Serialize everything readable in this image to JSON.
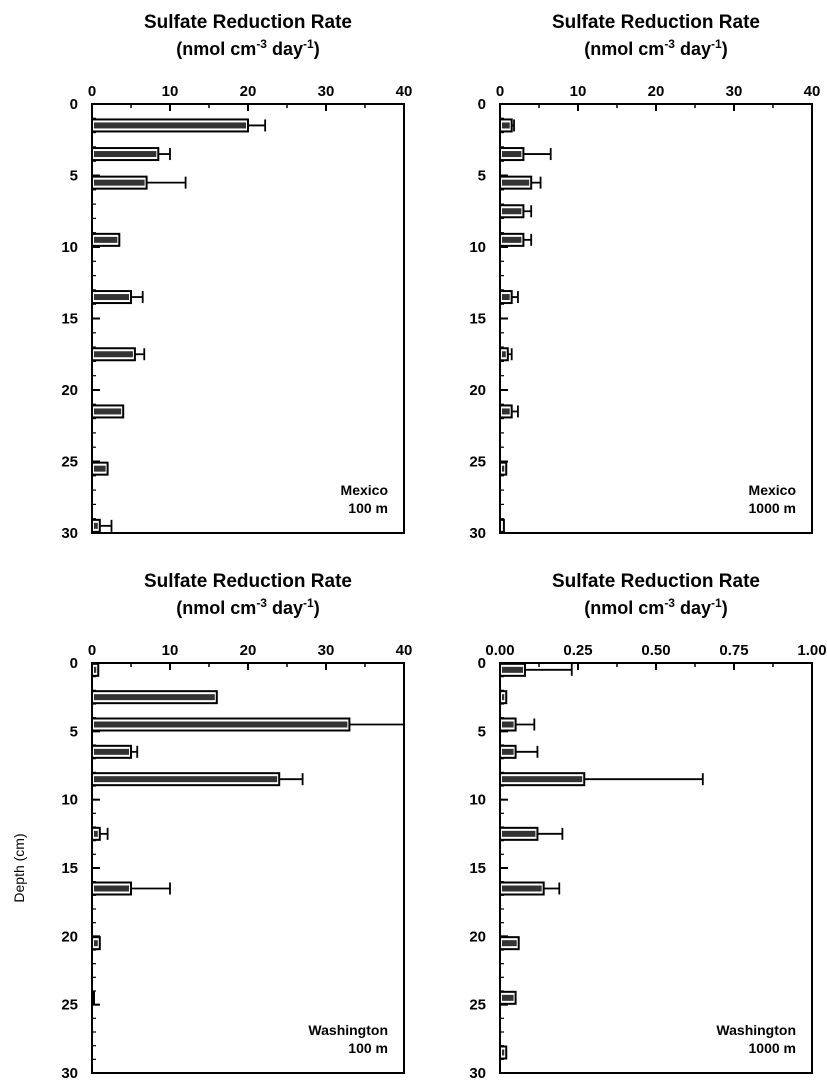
{
  "chart_data": [
    {
      "type": "bar",
      "orientation": "horizontal",
      "title": "Sulfate Reduction Rate",
      "unit": {
        "pre": "(nmol cm",
        "sup1": "-3",
        "mid": " day",
        "sup2": "-1",
        "post": ")"
      },
      "ylabel": "",
      "panel_label": [
        "Mexico",
        "100 m"
      ],
      "xlim": [
        0,
        40
      ],
      "ylim": [
        0,
        30
      ],
      "xticks": [
        "0",
        "10",
        "20",
        "30",
        "40"
      ],
      "yticks": [
        "0",
        "5",
        "10",
        "15",
        "20",
        "25",
        "30"
      ],
      "data": [
        {
          "depth": 1.5,
          "value": 20,
          "error": 2.2
        },
        {
          "depth": 3.5,
          "value": 8.5,
          "error": 1.5
        },
        {
          "depth": 5.5,
          "value": 7,
          "error": 5
        },
        {
          "depth": 9.5,
          "value": 3.5,
          "error": 0
        },
        {
          "depth": 13.5,
          "value": 5,
          "error": 1.5
        },
        {
          "depth": 17.5,
          "value": 5.5,
          "error": 1.2
        },
        {
          "depth": 21.5,
          "value": 4,
          "error": 0
        },
        {
          "depth": 25.5,
          "value": 2,
          "error": 0
        },
        {
          "depth": 29.5,
          "value": 1,
          "error": 1.5
        }
      ]
    },
    {
      "type": "bar",
      "orientation": "horizontal",
      "title": "Sulfate Reduction Rate",
      "unit": {
        "pre": "(nmol cm",
        "sup1": "-3",
        "mid": " day",
        "sup2": "-1",
        "post": ")"
      },
      "ylabel": "",
      "panel_label": [
        "Mexico",
        "1000 m"
      ],
      "xlim": [
        0,
        40
      ],
      "ylim": [
        0,
        30
      ],
      "xticks": [
        "0",
        "10",
        "20",
        "30",
        "40"
      ],
      "yticks": [
        "0",
        "5",
        "10",
        "15",
        "20",
        "25",
        "30"
      ],
      "data": [
        {
          "depth": 1.5,
          "value": 1.5,
          "error": 0.3
        },
        {
          "depth": 3.5,
          "value": 3,
          "error": 3.5
        },
        {
          "depth": 5.5,
          "value": 4,
          "error": 1.2
        },
        {
          "depth": 7.5,
          "value": 3,
          "error": 1
        },
        {
          "depth": 9.5,
          "value": 3,
          "error": 1
        },
        {
          "depth": 13.5,
          "value": 1.5,
          "error": 0.8
        },
        {
          "depth": 17.5,
          "value": 1,
          "error": 0.5
        },
        {
          "depth": 21.5,
          "value": 1.5,
          "error": 0.8
        },
        {
          "depth": 25.5,
          "value": 0.8,
          "error": 0
        },
        {
          "depth": 29.5,
          "value": 0.5,
          "error": 0
        }
      ]
    },
    {
      "type": "bar",
      "orientation": "horizontal",
      "title": "Sulfate Reduction Rate",
      "unit": {
        "pre": "(nmol cm",
        "sup1": "-3",
        "mid": " day",
        "sup2": "-1",
        "post": ")"
      },
      "ylabel": "Depth (cm)",
      "panel_label": [
        "Washington",
        "100 m"
      ],
      "xlim": [
        0,
        40
      ],
      "ylim": [
        0,
        30
      ],
      "xticks": [
        "0",
        "10",
        "20",
        "30",
        "40"
      ],
      "yticks": [
        "0",
        "5",
        "10",
        "15",
        "20",
        "25",
        "30"
      ],
      "data": [
        {
          "depth": 0.5,
          "value": 0.8,
          "error": 0
        },
        {
          "depth": 2.5,
          "value": 16,
          "error": 0
        },
        {
          "depth": 4.5,
          "value": 33,
          "error": 7
        },
        {
          "depth": 6.5,
          "value": 5,
          "error": 0.8
        },
        {
          "depth": 8.5,
          "value": 24,
          "error": 3
        },
        {
          "depth": 12.5,
          "value": 1,
          "error": 1
        },
        {
          "depth": 16.5,
          "value": 5,
          "error": 5
        },
        {
          "depth": 20.5,
          "value": 1,
          "error": 0
        },
        {
          "depth": 24.5,
          "value": 0.2,
          "error": 0
        }
      ]
    },
    {
      "type": "bar",
      "orientation": "horizontal",
      "title": "Sulfate Reduction Rate",
      "unit": {
        "pre": "(nmol cm",
        "sup1": "-3",
        "mid": " day",
        "sup2": "-1",
        "post": ")"
      },
      "ylabel": "",
      "panel_label": [
        "Washington",
        "1000 m"
      ],
      "xlim": [
        0,
        1
      ],
      "ylim": [
        0,
        30
      ],
      "xticks": [
        "0.00",
        "0.25",
        "0.50",
        "0.75",
        "1.00"
      ],
      "yticks": [
        "0",
        "5",
        "10",
        "15",
        "20",
        "25",
        "30"
      ],
      "data": [
        {
          "depth": 0.5,
          "value": 0.08,
          "error": 0.15
        },
        {
          "depth": 2.5,
          "value": 0.02,
          "error": 0
        },
        {
          "depth": 4.5,
          "value": 0.05,
          "error": 0.06
        },
        {
          "depth": 6.5,
          "value": 0.05,
          "error": 0.07
        },
        {
          "depth": 8.5,
          "value": 0.27,
          "error": 0.38
        },
        {
          "depth": 12.5,
          "value": 0.12,
          "error": 0.08
        },
        {
          "depth": 16.5,
          "value": 0.14,
          "error": 0.05
        },
        {
          "depth": 20.5,
          "value": 0.06,
          "error": 0
        },
        {
          "depth": 24.5,
          "value": 0.05,
          "error": 0
        },
        {
          "depth": 28.5,
          "value": 0.02,
          "error": 0
        }
      ]
    }
  ]
}
